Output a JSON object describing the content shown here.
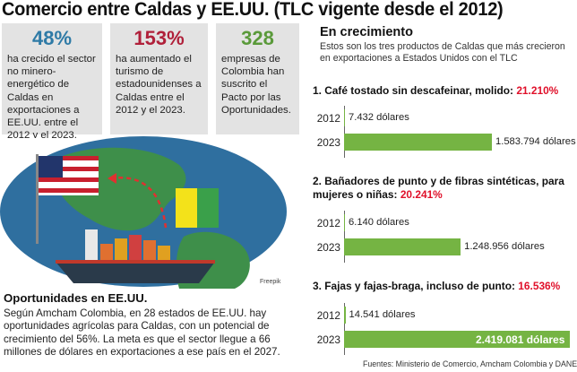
{
  "title": "Comercio entre Caldas y EE.UU. (TLC vigente desde el 2012)",
  "stats": [
    {
      "number": "48%",
      "color": "#2e7aa6",
      "text": "ha crecido el sector no minero-energético de Caldas en exportaciones a EE.UU. entre el 2012 y el 2023."
    },
    {
      "number": "153%",
      "color": "#b0203a",
      "text": "ha aumentado el turismo de estadounidenses a Caldas entre el 2012 y el 2023."
    },
    {
      "number": "328",
      "color": "#5a9a3a",
      "text": "empresas de Colombia han suscrito el Pacto por las Oportunidades."
    }
  ],
  "illustration": {
    "credit": "Freepik",
    "colors": {
      "ocean": "#2f6f9f",
      "land": "#3e8f4a",
      "ship_hull": "#2a3a4a",
      "arrow": "#e03030"
    }
  },
  "opportunities": {
    "title": "Oportunidades en EE.UU.",
    "text": "Según Amcham Colombia, en 28 estados de EE.UU. hay oportunidades agrícolas para Caldas, con un potencial de crecimiento del 56%. La meta es que el sector llegue a 66 millones de dólares en exportaciones a ese país en el 2027."
  },
  "growth": {
    "title": "En crecimiento",
    "subtitle": "Estos son los tres productos de Caldas que más crecieron en exportaciones a Estados Unidos con el TLC"
  },
  "chart_data": {
    "type": "bar",
    "orientation": "horizontal",
    "unit": "dólares",
    "bar_color": "#75b443",
    "categories": [
      "2012",
      "2023"
    ],
    "products": [
      {
        "label": "1. Café tostado sin descafeinar, molido:",
        "growth": "21.210%",
        "values": [
          7432,
          1583794
        ],
        "value_labels": [
          "7.432 dólares",
          "1.583.794 dólares"
        ]
      },
      {
        "label": "2. Bañadores de punto y de fibras sintéticas, para mujeres o niñas:",
        "growth": "20.241%",
        "values": [
          6140,
          1248956
        ],
        "value_labels": [
          "6.140 dólares",
          "1.248.956 dólares"
        ]
      },
      {
        "label": "3. Fajas y fajas-braga, incluso de punto:",
        "growth": "16.536%",
        "values": [
          14541,
          2419081
        ],
        "value_labels": [
          "14.541 dólares",
          "2.419.081 dólares"
        ]
      }
    ]
  },
  "source": "Fuentes: Ministerio de Comercio, Amcham Colombia y DANE"
}
